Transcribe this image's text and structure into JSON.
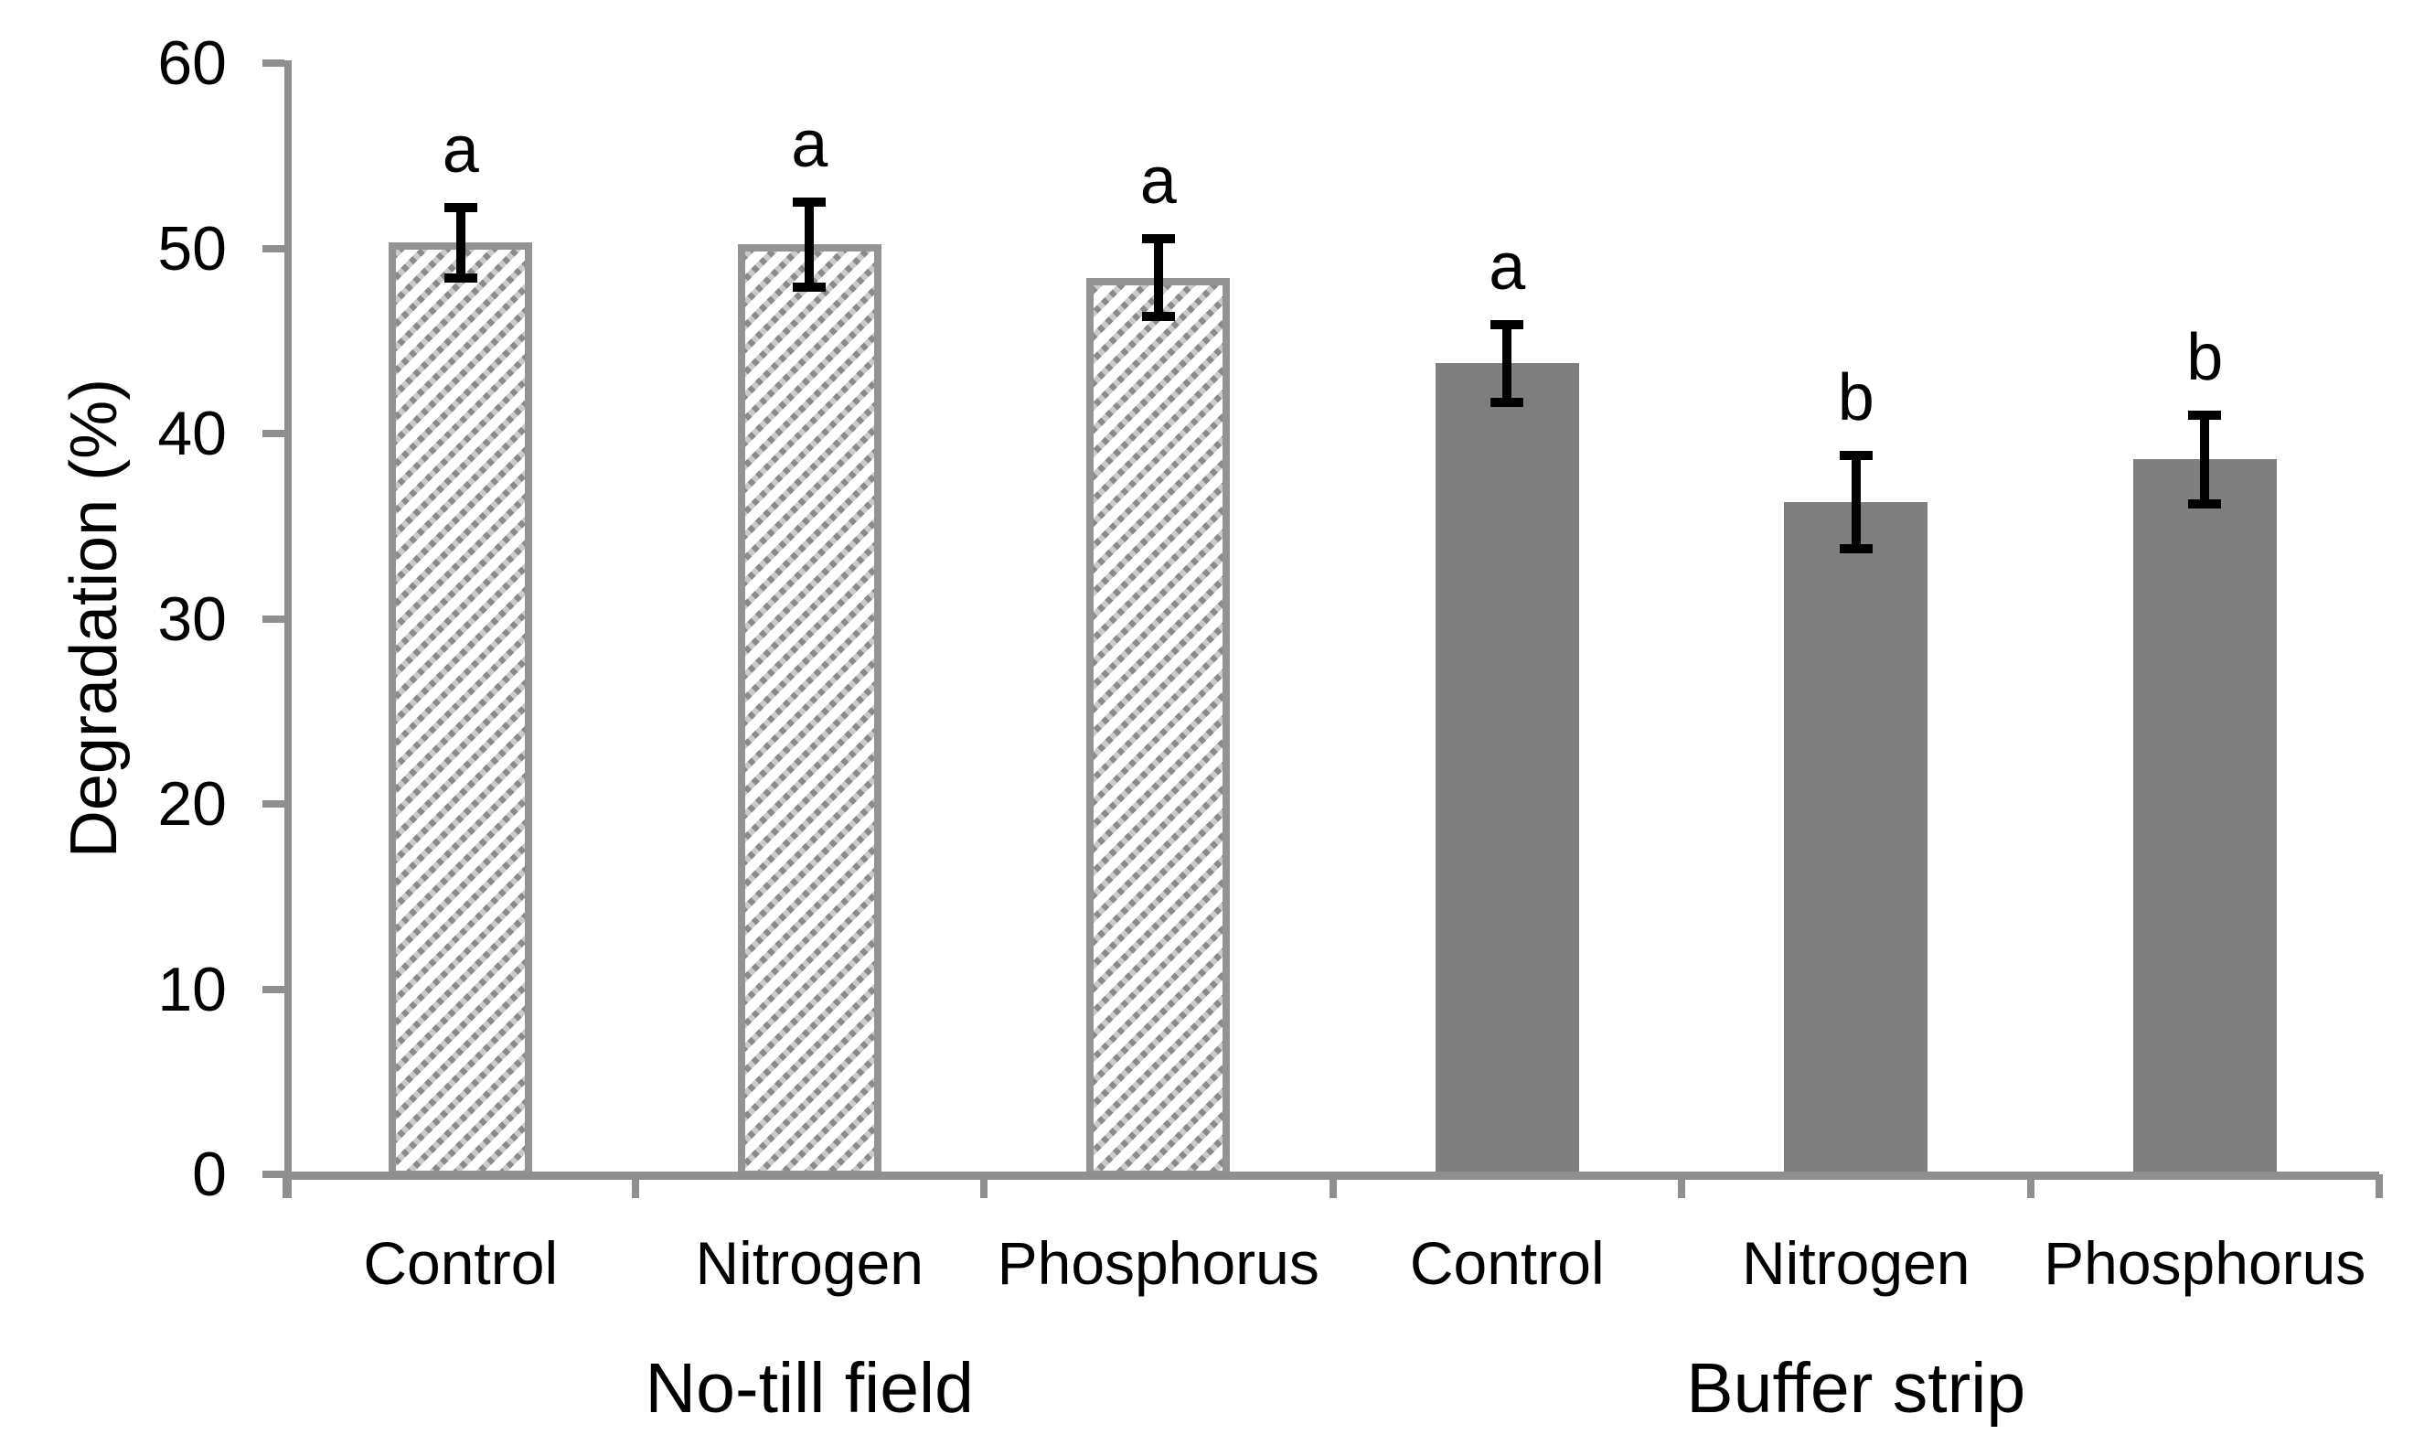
{
  "chart_data": {
    "type": "bar",
    "title": "",
    "xlabel": "",
    "ylabel": "Degradation (%)",
    "ylim": [
      0,
      60
    ],
    "yticks": [
      0,
      10,
      20,
      30,
      40,
      50,
      60
    ],
    "grid": false,
    "legend": false,
    "groups": [
      {
        "label": "No-till field",
        "bar_style": "hatched-diagonal",
        "categories": [
          "Control",
          "Nitrogen",
          "Phosphorus"
        ],
        "values": [
          50.3,
          50.2,
          48.4
        ],
        "error_bars": [
          1.9,
          2.3,
          2.1
        ],
        "significance_letters": [
          "a",
          "a",
          "a"
        ]
      },
      {
        "label": "Buffer strip",
        "bar_style": "solid",
        "categories": [
          "Control",
          "Nitrogen",
          "Phosphorus"
        ],
        "values": [
          43.8,
          36.3,
          38.6
        ],
        "error_bars": [
          2.1,
          2.5,
          2.4
        ],
        "significance_letters": [
          "a",
          "b",
          "b"
        ]
      }
    ],
    "colors": {
      "solid_bar_fill": "#7f7f7f",
      "hatch_stripe": "#8a8a8a",
      "hatched_bar_bg": "#ffffff",
      "hatched_bar_border": "#939393",
      "axis_line": "#8f8f8f",
      "error_bar": "#000000",
      "text": "#000000",
      "background": "#ffffff"
    }
  }
}
